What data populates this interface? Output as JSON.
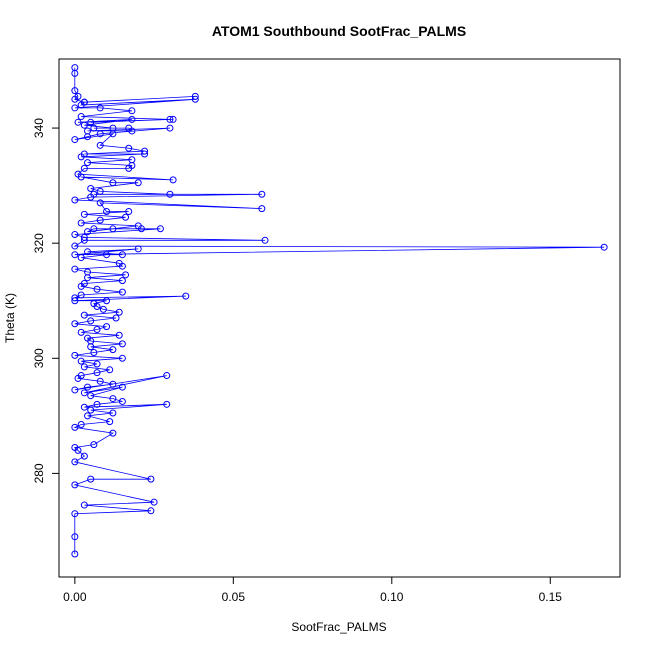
{
  "chart_data": {
    "type": "scatter",
    "title": "ATOM1 Southbound SootFrac_PALMS",
    "xlabel": "SootFrac_PALMS",
    "ylabel": "Theta (K)",
    "xlim": [
      -0.005,
      0.172
    ],
    "ylim": [
      262,
      352
    ],
    "x_ticks": [
      0.0,
      0.05,
      0.1,
      0.15
    ],
    "x_tick_labels": [
      "0.00",
      "0.05",
      "0.10",
      "0.15"
    ],
    "y_ticks": [
      280,
      300,
      320,
      340
    ],
    "y_tick_labels": [
      "280",
      "300",
      "320",
      "340"
    ],
    "grid": false,
    "legend": "none",
    "marker": "open-circle",
    "connected": true,
    "color": "#0000ff",
    "series": [
      {
        "x": [
          0,
          0,
          0,
          0.001,
          0.0,
          0.003,
          0.038,
          0.003,
          0.002,
          0.038,
          0.0,
          0.008,
          0.018,
          0.002,
          0.03,
          0.005,
          0.031,
          0.001,
          0.018,
          0.003,
          0.012,
          0.006,
          0.017,
          0.018,
          0.004,
          0.03,
          0.008,
          0.004,
          0.0,
          0.012,
          0.008,
          0.017,
          0.022,
          0.003,
          0.022,
          0.002,
          0.018,
          0.004,
          0.018,
          0.017,
          0.003,
          0.001,
          0.031,
          0.002,
          0.012,
          0.02,
          0.005,
          0.008,
          0.03,
          0.006,
          0.059,
          0.005,
          0.0,
          0.059,
          0.008,
          0.01,
          0.017,
          0.003,
          0.016,
          0.008,
          0.002,
          0.02,
          0.012,
          0.004,
          0.006,
          0.021,
          0.027,
          0.0,
          0.003,
          0.06,
          0.003,
          0.0,
          0.167,
          0.0,
          0.02,
          0.004,
          0.015,
          0.01,
          0.002,
          0.014,
          0.015,
          0.0,
          0.004,
          0.016,
          0.004,
          0.015,
          0.003,
          0.002,
          0.007,
          0.015,
          0.002,
          0.0,
          0.035,
          0.0,
          0.01,
          0.006,
          0.007,
          0.009,
          0.014,
          0.003,
          0.013,
          0.005,
          0.0,
          0.01,
          0.007,
          0.002,
          0.014,
          0.004,
          0.005,
          0.015,
          0.005,
          0.012,
          0.006,
          0.0,
          0.015,
          0.002,
          0.007,
          0.003,
          0.011,
          0.007,
          0.002,
          0.001,
          0.008,
          0.012,
          0.004,
          0.0,
          0.029,
          0.003,
          0.015,
          0.005,
          0.012,
          0.015,
          0.007,
          0.003,
          0.029,
          0.005,
          0.012,
          0.004,
          0.011,
          0.002,
          0.0,
          0.012,
          0.006,
          0.0,
          0.001,
          0.003,
          0.0,
          0.024,
          0.005,
          0.0,
          0.025,
          0.003,
          0.024,
          0.0,
          0.0,
          0.0
        ],
        "y": [
          350.5,
          349.5,
          346.5,
          345.5,
          345,
          344.5,
          345.5,
          344.5,
          344,
          345,
          343.5,
          343.5,
          343,
          342,
          341.5,
          341,
          341.5,
          341,
          341.5,
          340.5,
          340,
          340,
          340,
          339.5,
          339.5,
          340,
          339,
          338.5,
          338,
          339,
          337,
          336.5,
          336,
          335.5,
          335.5,
          335,
          334.5,
          334,
          333.5,
          333,
          333,
          332,
          331,
          331.5,
          330.5,
          330.5,
          329.5,
          329,
          328.5,
          328.5,
          328.5,
          328,
          327.5,
          326,
          327,
          325.5,
          325.5,
          325,
          324.5,
          324,
          323.5,
          323,
          322.5,
          322,
          322.5,
          322.5,
          322.5,
          321.5,
          321,
          320.5,
          320.5,
          319.5,
          319.3,
          318,
          319,
          318.5,
          318,
          318,
          317.5,
          316.5,
          316,
          315.5,
          315,
          314.5,
          314,
          313.5,
          313,
          312.5,
          312,
          311.5,
          311,
          310.5,
          310.8,
          310,
          310,
          309.5,
          309,
          308.5,
          308,
          307.5,
          307,
          306.5,
          306,
          305.5,
          305,
          304.5,
          304,
          303.5,
          303,
          302.5,
          302,
          301.5,
          301,
          300.5,
          300,
          299.5,
          299,
          298.5,
          298,
          297.5,
          297,
          296.5,
          296,
          295.5,
          295,
          294.5,
          297,
          294,
          295,
          293.5,
          293,
          292.5,
          292,
          291.5,
          292,
          291,
          290.5,
          290,
          289,
          288.5,
          288,
          287,
          285,
          284.5,
          284,
          283,
          282,
          279,
          279,
          278,
          275,
          274.5,
          273.5,
          273,
          269,
          266
        ]
      }
    ]
  }
}
